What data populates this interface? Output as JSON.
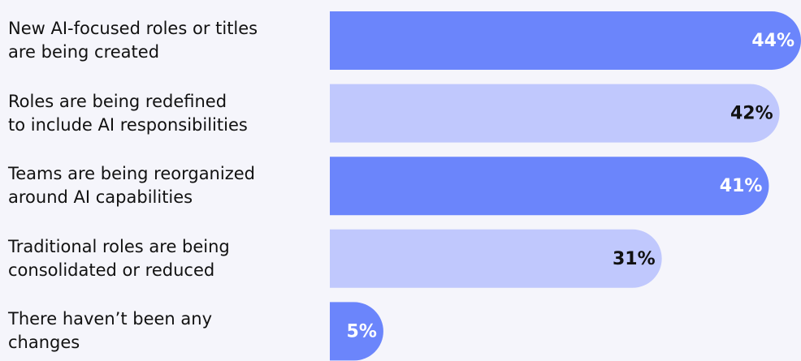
{
  "chart_data": {
    "type": "bar",
    "orientation": "horizontal",
    "categories": [
      "New AI-focused roles or titles\nare being created",
      "Roles are being redefined\nto include AI responsibilities",
      "Teams are being reorganized\naround AI capabilities",
      "Traditional roles are being\nconsolidated or reduced",
      "There haven’t been any\nchanges"
    ],
    "values": [
      44,
      42,
      41,
      31,
      5
    ],
    "value_labels": [
      "44%",
      "42%",
      "41%",
      "31%",
      "5%"
    ],
    "colors": [
      "#6b85fb",
      "#c0c8fd",
      "#6b85fb",
      "#c0c8fd",
      "#6b85fb"
    ],
    "label_colors": [
      "#ffffff",
      "#111111",
      "#ffffff",
      "#111111",
      "#ffffff"
    ]
  }
}
